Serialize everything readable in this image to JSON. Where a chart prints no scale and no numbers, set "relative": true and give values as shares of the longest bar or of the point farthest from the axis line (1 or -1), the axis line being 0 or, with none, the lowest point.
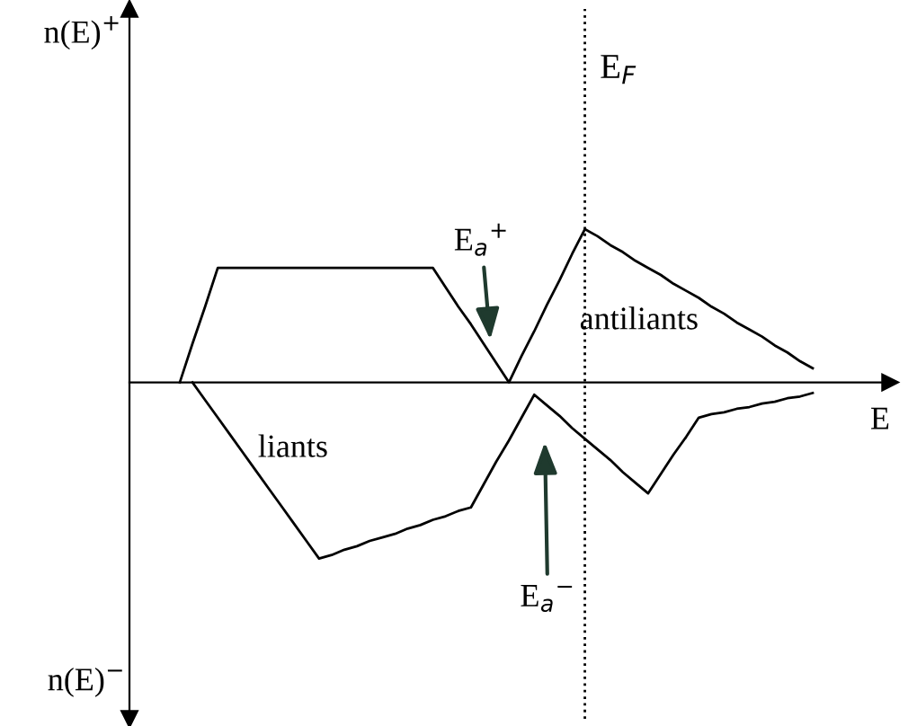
{
  "chart_data": {
    "type": "line",
    "relative": true,
    "marker": "none",
    "line_style": "solid",
    "categories": [
      null,
      null,
      null,
      null,
      null,
      null,
      null,
      null,
      null,
      null,
      null,
      null,
      null,
      null,
      null,
      null,
      null,
      null,
      null,
      null,
      null,
      null,
      null,
      null,
      null,
      null,
      null,
      null,
      null,
      null,
      null,
      null,
      null,
      null,
      null,
      null,
      null,
      null,
      null,
      null,
      null,
      null,
      null,
      null,
      null,
      null,
      null,
      null,
      null,
      null,
      null
    ],
    "xlabel": "E",
    "series": [
      {
        "color": "#000000",
        "values": [
          0,
          0.22,
          0.43,
          0.65,
          0.65,
          0.65,
          0.65,
          0.65,
          0.65,
          0.65,
          0.65,
          0.65,
          0.65,
          0.65,
          0.65,
          0.65,
          0.65,
          0.65,
          0.65,
          0.65,
          0.65,
          0.54,
          0.43,
          0.33,
          0.22,
          0.11,
          0,
          0.15,
          0.29,
          0.44,
          0.58,
          0.73,
          0.87,
          0.83,
          0.78,
          0.74,
          0.69,
          0.65,
          0.61,
          0.56,
          0.52,
          0.48,
          0.43,
          0.39,
          0.34,
          0.3,
          0.26,
          0.21,
          0.17,
          0.12,
          0.08
        ]
      },
      {
        "color": "#000000",
        "values": [
          null,
          0,
          -0.1,
          -0.2,
          -0.3,
          -0.4,
          -0.5,
          -0.6,
          -0.7,
          -0.8,
          -0.9,
          -1,
          -0.98,
          -0.95,
          -0.93,
          -0.9,
          -0.88,
          -0.86,
          -0.83,
          -0.81,
          -0.78,
          -0.76,
          -0.73,
          -0.71,
          -0.58,
          -0.45,
          -0.33,
          -0.2,
          -0.07,
          -0.13,
          -0.19,
          -0.26,
          -0.32,
          -0.38,
          -0.44,
          -0.51,
          -0.57,
          -0.63,
          -0.52,
          -0.41,
          -0.31,
          -0.2,
          -0.18,
          -0.17,
          -0.15,
          -0.14,
          -0.12,
          -0.11,
          -0.09,
          -0.08,
          -0.06
        ]
      }
    ],
    "ref_lines": [
      {
        "axis": "x",
        "label": "E$_{F}$",
        "line_style": "dotted",
        "color": "#000000"
      }
    ],
    "annotations": [
      "n(E)$^{+}$",
      "antiliants",
      "liants",
      "n(E)$^{−}$",
      "E$_{a}$$^{+}$",
      "E$_{a}$$^{−}$"
    ]
  }
}
